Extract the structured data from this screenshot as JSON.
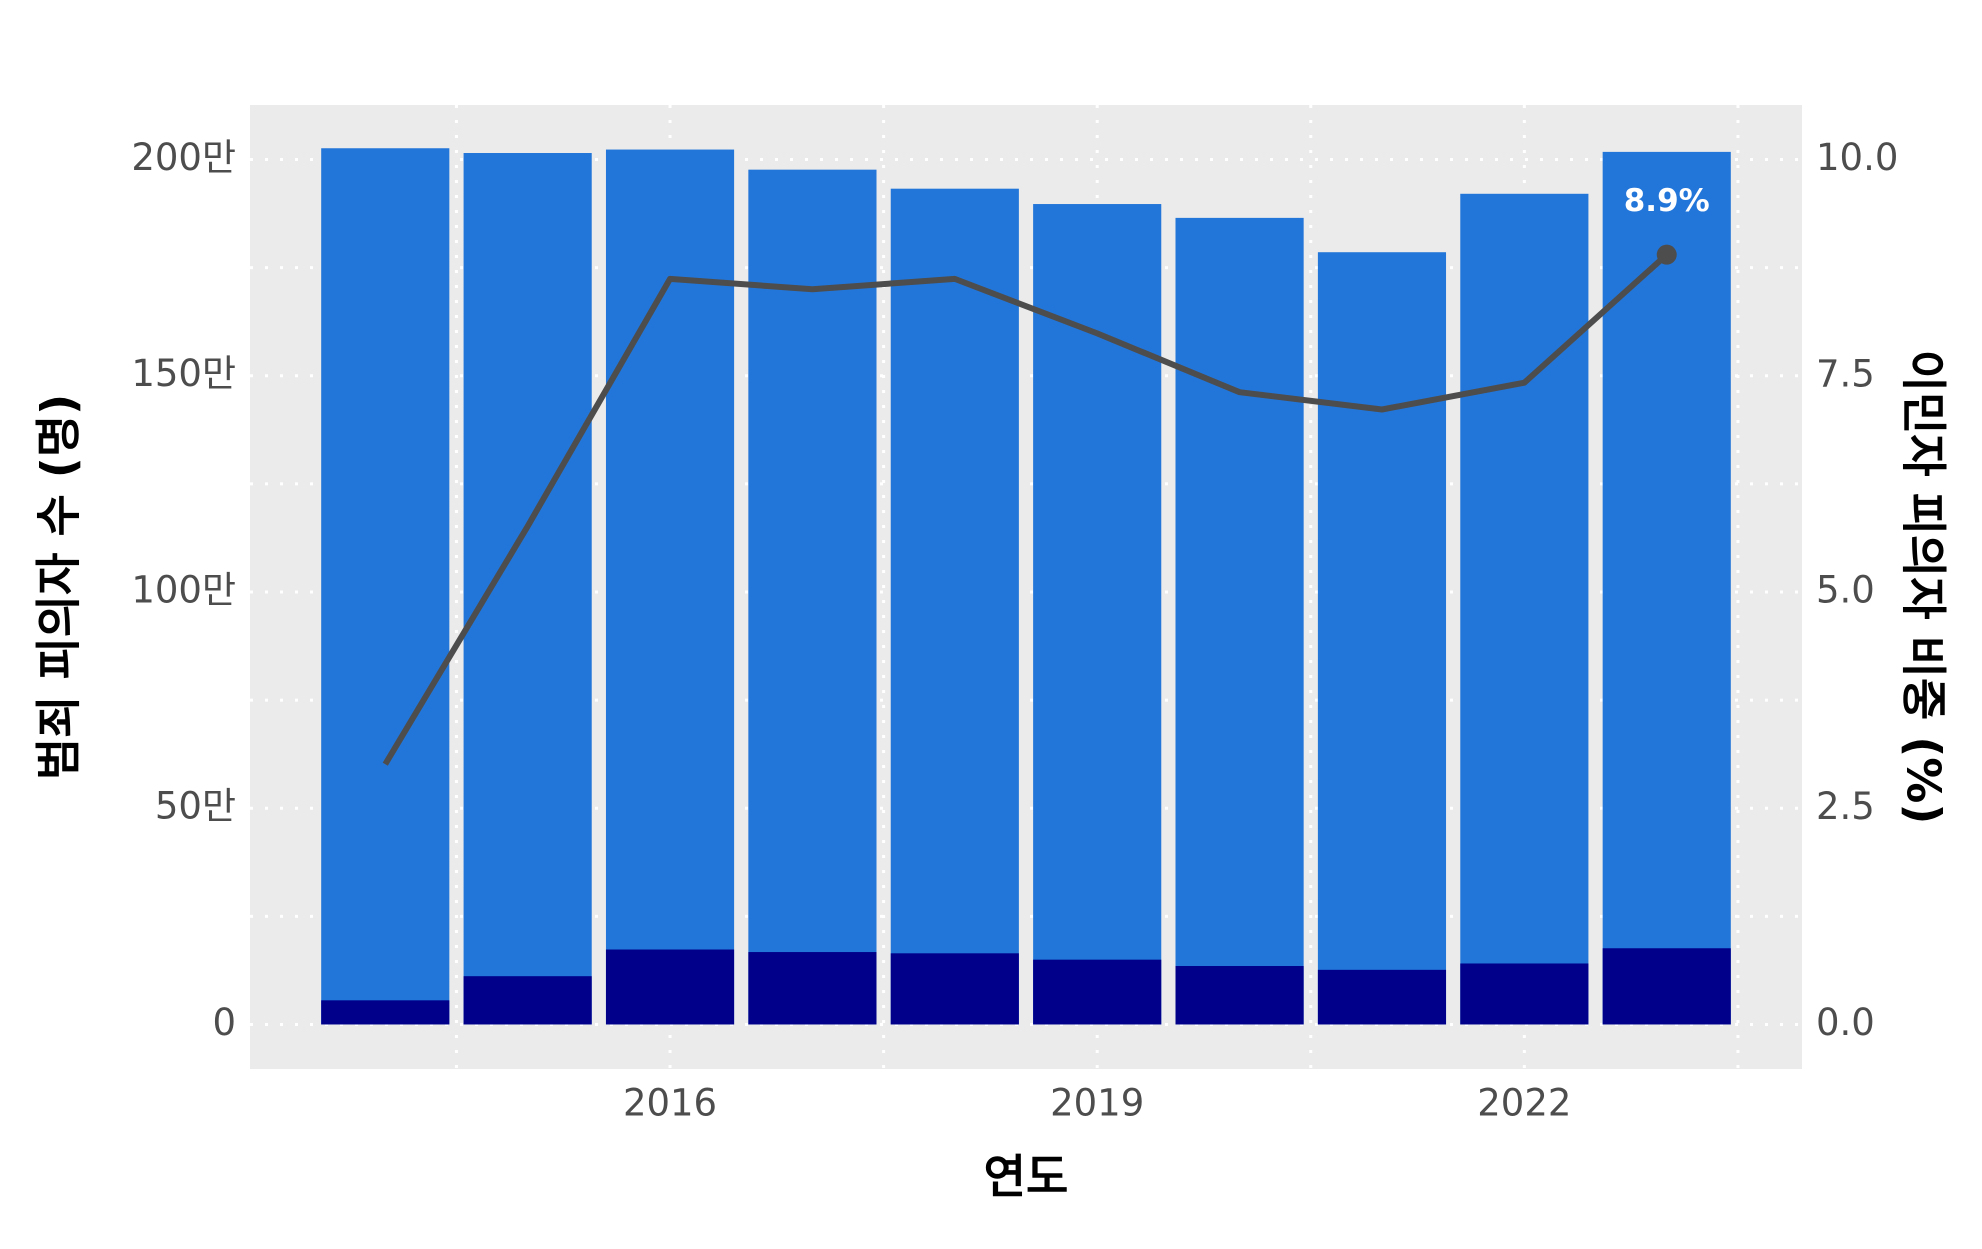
{
  "chart_data": {
    "type": "combo",
    "x_label": "연도",
    "y_label": "범죄 피의자 수 (명)",
    "y2_label": "이민자 피의자 비중 (%)",
    "x": [
      2014,
      2015,
      2016,
      2017,
      2018,
      2019,
      2020,
      2021,
      2022,
      2023
    ],
    "xlim": [
      2013.05,
      2023.95
    ],
    "xticks": [
      2016,
      2019,
      2022
    ],
    "ylim": [
      -103000,
      2126000
    ],
    "yticks": [
      {
        "value": 0,
        "label": "0"
      },
      {
        "value": 500000,
        "label": "50만"
      },
      {
        "value": 1000000,
        "label": "100만"
      },
      {
        "value": 1500000,
        "label": "150만"
      },
      {
        "value": 2000000,
        "label": "200만"
      }
    ],
    "y2lim": [
      -0.514,
      10.63
    ],
    "y2ticks": [
      {
        "value": 0,
        "label": "0.0"
      },
      2.5,
      {
        "value": 5,
        "label": "5.0"
      },
      7.5,
      {
        "value": 10,
        "label": "10.0"
      }
    ],
    "grid": true,
    "series": [
      {
        "type": "bar",
        "color": "#2376d9",
        "values": [
          2026000,
          2015000,
          2023000,
          1976500,
          1932500,
          1897000,
          1865000,
          1785600,
          1920700,
          2017600
        ]
      },
      {
        "type": "bar",
        "color": "#00008b",
        "values": [
          55800,
          111600,
          173300,
          167400,
          164500,
          149800,
          135100,
          126300,
          141000,
          176200
        ]
      },
      {
        "type": "line",
        "axis": "y2",
        "color": "#4d4d4d",
        "values": [
          3.01,
          5.76,
          8.62,
          8.5,
          8.62,
          7.99,
          7.31,
          7.11,
          7.42,
          8.9
        ],
        "value_labels": [
          null,
          null,
          null,
          null,
          null,
          null,
          null,
          null,
          null,
          "8.9%"
        ]
      }
    ]
  }
}
